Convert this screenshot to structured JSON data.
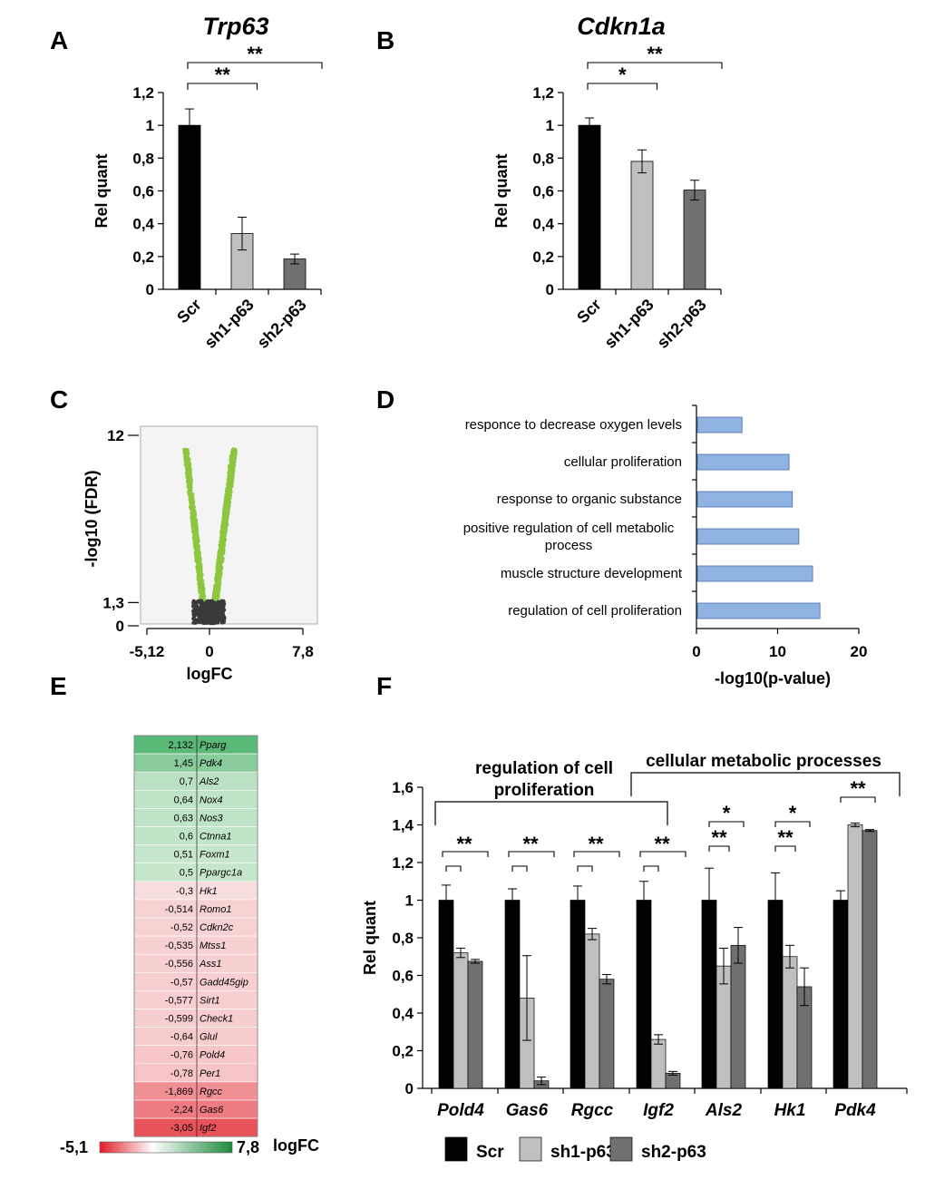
{
  "panel_letters": [
    "A",
    "B",
    "C",
    "D",
    "E",
    "F"
  ],
  "colors": {
    "scr": "#000000",
    "sh1": "#bfbfbf",
    "sh2": "#707070",
    "go_bar": "#8fb4e3",
    "volcano_sig": "#8dc63f",
    "volcano_ns": "#3a3a3a"
  },
  "chart_data": [
    {
      "id": "A",
      "type": "bar",
      "title": "Trp63",
      "ylabel": "Rel quant",
      "categories": [
        "Scr",
        "sh1-p63",
        "sh2-p63"
      ],
      "values": [
        1.0,
        0.34,
        0.185
      ],
      "errors": [
        0.1,
        0.1,
        0.03
      ],
      "ylim": [
        0,
        1.2
      ],
      "yticks": [
        "0",
        "0,2",
        "0,4",
        "0,6",
        "0,8",
        "1",
        "1,2"
      ],
      "significance": [
        {
          "from": 0,
          "to": 1,
          "label": "**"
        },
        {
          "from": 0,
          "to": 2,
          "label": "**"
        }
      ]
    },
    {
      "id": "B",
      "type": "bar",
      "title": "Cdkn1a",
      "ylabel": "Rel quant",
      "categories": [
        "Scr",
        "sh1-p63",
        "sh2-p63"
      ],
      "values": [
        1.0,
        0.78,
        0.605
      ],
      "errors": [
        0.045,
        0.07,
        0.06
      ],
      "ylim": [
        0,
        1.2
      ],
      "yticks": [
        "0",
        "0,2",
        "0,4",
        "0,6",
        "0,8",
        "1",
        "1,2"
      ],
      "significance": [
        {
          "from": 0,
          "to": 1,
          "label": "*"
        },
        {
          "from": 0,
          "to": 2,
          "label": "**"
        }
      ]
    },
    {
      "id": "C",
      "type": "scatter",
      "title": "",
      "xlabel": "logFC",
      "ylabel": "-log10 (FDR)",
      "xticks": [
        "-5,12",
        "0",
        "7,8"
      ],
      "yticks": [
        "0",
        "1,3",
        "12"
      ],
      "xlim": [
        -5.12,
        7.8
      ],
      "ylim": [
        0,
        12
      ],
      "threshold": 1.3
    },
    {
      "id": "D",
      "type": "bar",
      "orientation": "horizontal",
      "title": "",
      "xlabel": "-log10(p-value)",
      "xlim": [
        0,
        20
      ],
      "xticks": [
        "0",
        "10",
        "20"
      ],
      "categories": [
        "responce to decrease oxygen levels",
        "cellular proliferation",
        "response to organic substance",
        "positive regulation of cell metabolic process",
        "muscle structure development",
        "regulation of cell proliferation"
      ],
      "values": [
        5.5,
        11.3,
        11.7,
        12.5,
        14.2,
        15.1
      ]
    },
    {
      "id": "E",
      "type": "heatmap",
      "title": "",
      "genes": [
        "Pparg",
        "Pdk4",
        "Als2",
        "Nox4",
        "Nos3",
        "Ctnna1",
        "Foxm1",
        "Ppargc1a",
        "Hk1",
        "Romo1",
        "Cdkn2c",
        "Mtss1",
        "Ass1",
        "Gadd45gip",
        "Sirt1",
        "Check1",
        "Glul",
        "Pold4",
        "Per1",
        "Rgcc",
        "Gas6",
        "Igf2"
      ],
      "values": [
        2.132,
        1.45,
        0.7,
        0.64,
        0.63,
        0.6,
        0.51,
        0.5,
        -0.3,
        -0.514,
        -0.52,
        -0.535,
        -0.556,
        -0.57,
        -0.577,
        -0.599,
        -0.64,
        -0.76,
        -0.78,
        -1.869,
        -2.24,
        -3.05
      ],
      "labels": [
        "2,132",
        "1,45",
        "0,7",
        "0,64",
        "0,63",
        "0,6",
        "0,51",
        "0,5",
        "-0,3",
        "-0,514",
        "-0,52",
        "-0,535",
        "-0,556",
        "-0,57",
        "-0,577",
        "-0,599",
        "-0,64",
        "-0,76",
        "-0,78",
        "-1,869",
        "-2,24",
        "-3,05"
      ],
      "scale": {
        "min_label": "-5,1",
        "max_label": "7,8",
        "label": "logFC",
        "min": -5.1,
        "max": 7.8
      }
    },
    {
      "id": "F",
      "type": "bar",
      "title": "",
      "ylabel": "Rel quant",
      "categories": [
        "Pold4",
        "Gas6",
        "Rgcc",
        "Igf2",
        "Als2",
        "Hk1",
        "Pdk4"
      ],
      "series": [
        {
          "name": "Scr",
          "values": [
            1.0,
            1.0,
            1.0,
            1.0,
            1.0,
            1.0,
            1.0
          ],
          "errors": [
            0.08,
            0.06,
            0.075,
            0.1,
            0.17,
            0.145,
            0.05
          ]
        },
        {
          "name": "sh1-p63",
          "values": [
            0.72,
            0.48,
            0.82,
            0.26,
            0.65,
            0.7,
            1.4
          ],
          "errors": [
            0.025,
            0.225,
            0.03,
            0.025,
            0.095,
            0.06,
            0.01
          ]
        },
        {
          "name": "sh2-p63",
          "values": [
            0.675,
            0.04,
            0.58,
            0.08,
            0.76,
            0.54,
            1.37
          ],
          "errors": [
            0.01,
            0.02,
            0.025,
            0.01,
            0.095,
            0.1,
            0.005
          ]
        }
      ],
      "ylim": [
        0,
        1.6
      ],
      "yticks": [
        "0",
        "0,2",
        "0,4",
        "0,6",
        "0,8",
        "1",
        "1,2",
        "1,4",
        "1,6"
      ],
      "significance": [
        {
          "group": 0,
          "pair": [
            0,
            1
          ],
          "label": "**"
        },
        {
          "group": 1,
          "pair": [
            0,
            1
          ],
          "label": "**"
        },
        {
          "group": 2,
          "pair": [
            0,
            1
          ],
          "label": "**"
        },
        {
          "group": 3,
          "pair": [
            0,
            1
          ],
          "label": "**"
        },
        {
          "group": 4,
          "pair": [
            0,
            1
          ],
          "label": "**"
        },
        {
          "group": 4,
          "pair": [
            0,
            2
          ],
          "label": "*"
        },
        {
          "group": 5,
          "pair": [
            0,
            1
          ],
          "label": "**"
        },
        {
          "group": 5,
          "pair": [
            0,
            2
          ],
          "label": "*"
        },
        {
          "group": 6,
          "pair": [
            0,
            2
          ],
          "label": "**"
        }
      ],
      "groups": [
        "regulation of cell proliferation",
        "cellular metabolic processes"
      ],
      "group_lines": [
        "regulation of cell",
        "proliferation",
        "cellular metabolic processes"
      ],
      "legend": [
        "Scr",
        "sh1-p63",
        "sh2-p63"
      ]
    }
  ]
}
